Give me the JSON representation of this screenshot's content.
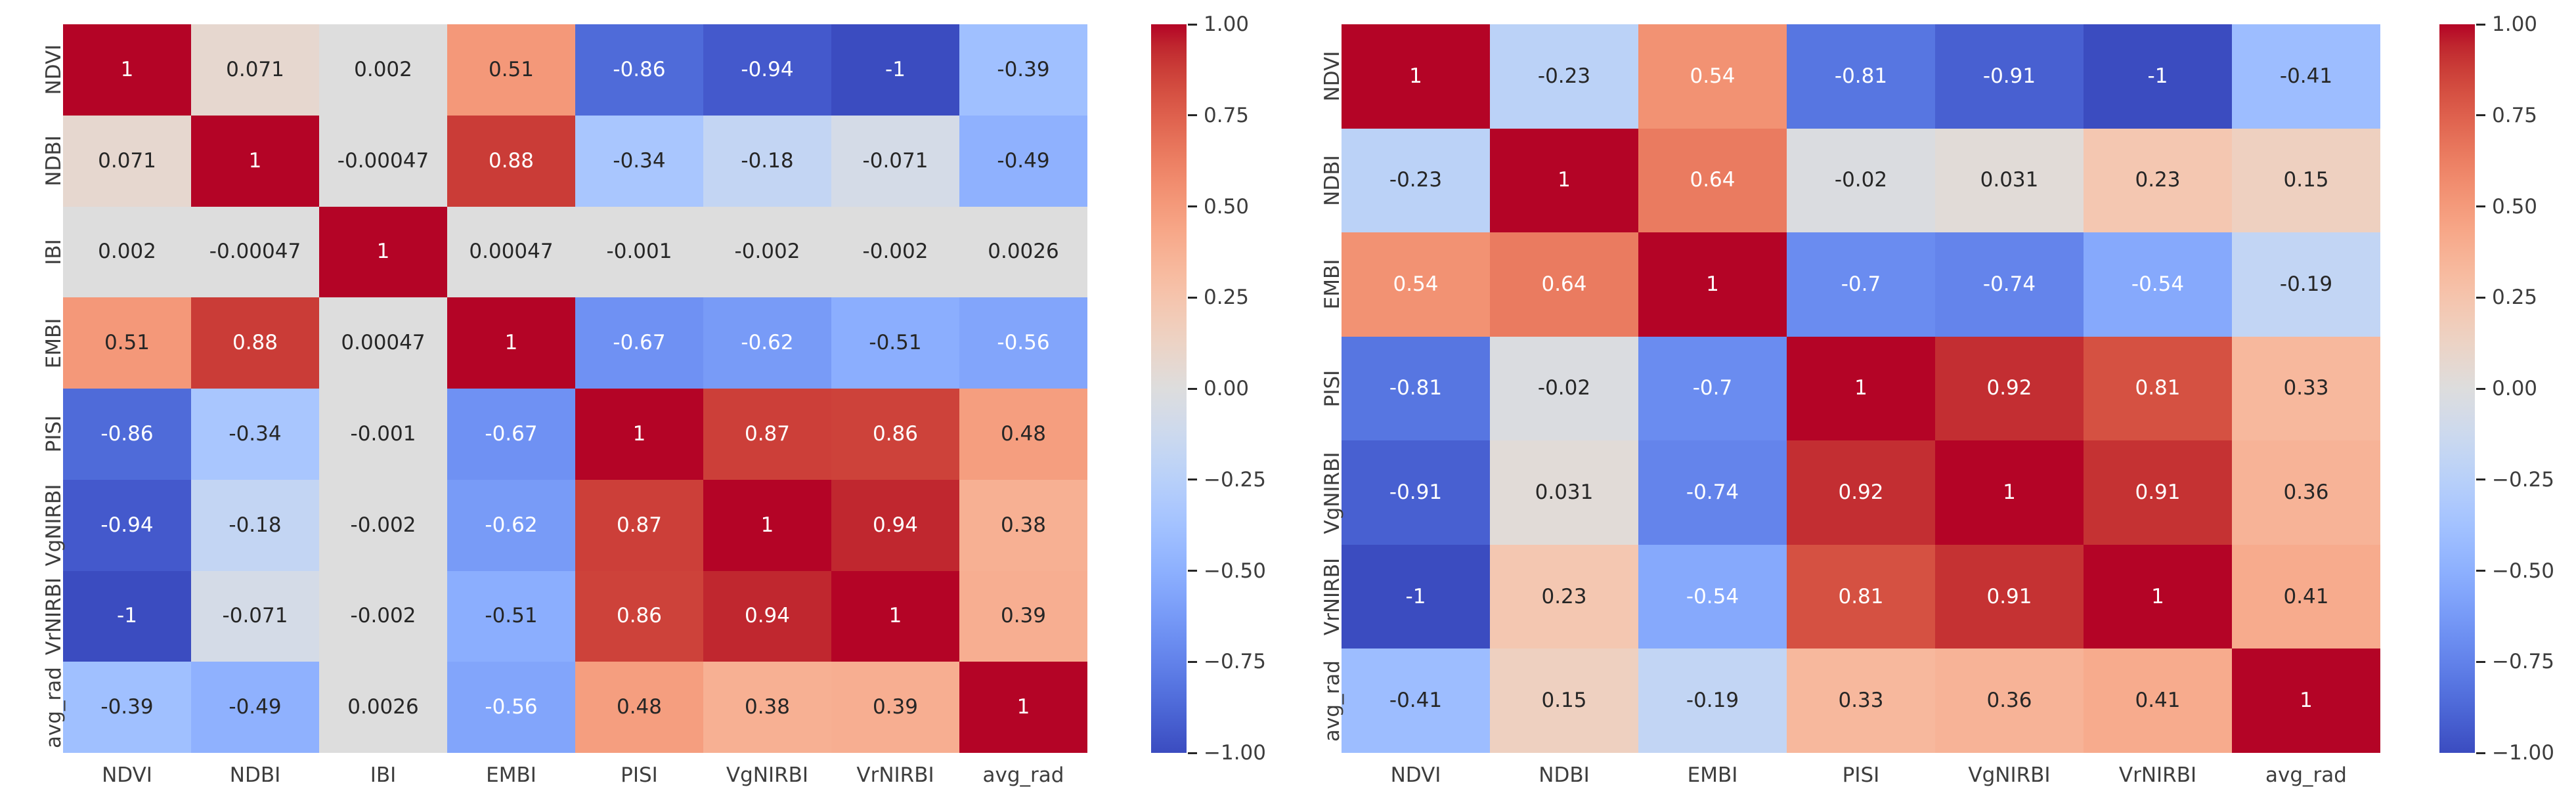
{
  "figure": {
    "background": "#ffffff",
    "description": "Two correlation-matrix heatmaps with coolwarm colorbars"
  },
  "chart_data": [
    {
      "type": "heatmap",
      "name": "correlation-heatmap-with-IBI",
      "colormap": "coolwarm",
      "vmin": -1,
      "vmax": 1,
      "grid": false,
      "legend_position": "right-colorbar",
      "categories": [
        "NDVI",
        "NDBI",
        "IBI",
        "EMBI",
        "PISI",
        "VgNIRBI",
        "VrNIRBI",
        "avg_rad"
      ],
      "cells": [
        [
          "1",
          "0.071",
          "0.002",
          "0.51",
          "-0.86",
          "-0.94",
          "-1",
          "-0.39"
        ],
        [
          "0.071",
          "1",
          "-0.00047",
          "0.88",
          "-0.34",
          "-0.18",
          "-0.071",
          "-0.49"
        ],
        [
          "0.002",
          "-0.00047",
          "1",
          "0.00047",
          "-0.001",
          "-0.002",
          "-0.002",
          "0.0026"
        ],
        [
          "0.51",
          "0.88",
          "0.00047",
          "1",
          "-0.67",
          "-0.62",
          "-0.51",
          "-0.56"
        ],
        [
          "-0.86",
          "-0.34",
          "-0.001",
          "-0.67",
          "1",
          "0.87",
          "0.86",
          "0.48"
        ],
        [
          "-0.94",
          "-0.18",
          "-0.002",
          "-0.62",
          "0.87",
          "1",
          "0.94",
          "0.38"
        ],
        [
          "-1",
          "-0.071",
          "-0.002",
          "-0.51",
          "0.86",
          "0.94",
          "1",
          "0.39"
        ],
        [
          "-0.39",
          "-0.49",
          "0.0026",
          "-0.56",
          "0.48",
          "0.38",
          "0.39",
          "1"
        ]
      ],
      "colorbar_ticks": [
        "1.00",
        "0.75",
        "0.50",
        "0.25",
        "0.00",
        "−0.25",
        "−0.50",
        "−0.75",
        "−1.00"
      ]
    },
    {
      "type": "heatmap",
      "name": "correlation-heatmap-without-IBI",
      "colormap": "coolwarm",
      "vmin": -1,
      "vmax": 1,
      "grid": false,
      "legend_position": "right-colorbar",
      "categories": [
        "NDVI",
        "NDBI",
        "EMBI",
        "PISI",
        "VgNIRBI",
        "VrNIRBI",
        "avg_rad"
      ],
      "cells": [
        [
          "1",
          "-0.23",
          "0.54",
          "-0.81",
          "-0.91",
          "-1",
          "-0.41"
        ],
        [
          "-0.23",
          "1",
          "0.64",
          "-0.02",
          "0.031",
          "0.23",
          "0.15"
        ],
        [
          "0.54",
          "0.64",
          "1",
          "-0.7",
          "-0.74",
          "-0.54",
          "-0.19"
        ],
        [
          "-0.81",
          "-0.02",
          "-0.7",
          "1",
          "0.92",
          "0.81",
          "0.33"
        ],
        [
          "-0.91",
          "0.031",
          "-0.74",
          "0.92",
          "1",
          "0.91",
          "0.36"
        ],
        [
          "-1",
          "0.23",
          "-0.54",
          "0.81",
          "0.91",
          "1",
          "0.41"
        ],
        [
          "-0.41",
          "0.15",
          "-0.19",
          "0.33",
          "0.36",
          "0.41",
          "1"
        ]
      ],
      "colorbar_ticks": [
        "1.00",
        "0.75",
        "0.50",
        "0.25",
        "0.00",
        "−0.25",
        "−0.50",
        "−0.75",
        "−1.00"
      ]
    }
  ],
  "colors": {
    "annotation_dark": "#262626",
    "annotation_light": "#ffffff",
    "tick_label": "#3d3d3d",
    "cmap_min": "#3b4cc0",
    "cmap_mid": "#dddddd",
    "cmap_max": "#b40426"
  }
}
